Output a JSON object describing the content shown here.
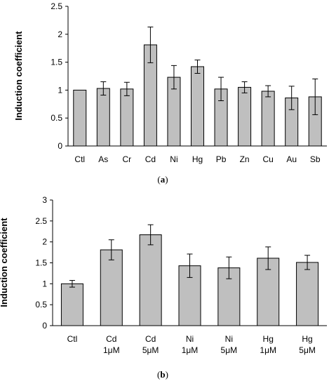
{
  "chart_data": [
    {
      "type": "bar",
      "panel_label": "a",
      "ylabel": "Induction coefficient",
      "xlabel": "",
      "title": "",
      "ylim": [
        0,
        2.5
      ],
      "yticks": [
        "0",
        "0.5",
        "1",
        "1.5",
        "2",
        "2.5"
      ],
      "categories": [
        "Ctl",
        "As",
        "Cr",
        "Cd",
        "Ni",
        "Hg",
        "Pb",
        "Zn",
        "Cu",
        "Au",
        "Sb"
      ],
      "values": [
        1.0,
        1.03,
        1.02,
        1.81,
        1.23,
        1.42,
        1.02,
        1.05,
        0.98,
        0.86,
        0.88
      ],
      "errors": [
        0.0,
        0.12,
        0.12,
        0.32,
        0.21,
        0.12,
        0.21,
        0.1,
        0.1,
        0.21,
        0.32
      ],
      "bar_color": "#bfbfbf",
      "grid": false
    },
    {
      "type": "bar",
      "panel_label": "b",
      "ylabel": "Induction coefficient",
      "xlabel": "",
      "title": "",
      "ylim": [
        0,
        3
      ],
      "yticks": [
        "0",
        "0.5",
        "1",
        "1.5",
        "2",
        "2.5",
        "3"
      ],
      "categories": [
        [
          "Ctl",
          ""
        ],
        [
          "Cd",
          "1μM"
        ],
        [
          "Cd",
          "5μM"
        ],
        [
          "Ni",
          "1μM"
        ],
        [
          "Ni",
          "5μM"
        ],
        [
          "Hg",
          "1μM"
        ],
        [
          "Hg",
          "5μM"
        ]
      ],
      "values": [
        1.0,
        1.81,
        2.17,
        1.43,
        1.38,
        1.61,
        1.51
      ],
      "errors": [
        0.08,
        0.24,
        0.24,
        0.28,
        0.26,
        0.27,
        0.17
      ],
      "bar_color": "#bfbfbf",
      "grid": false
    }
  ]
}
